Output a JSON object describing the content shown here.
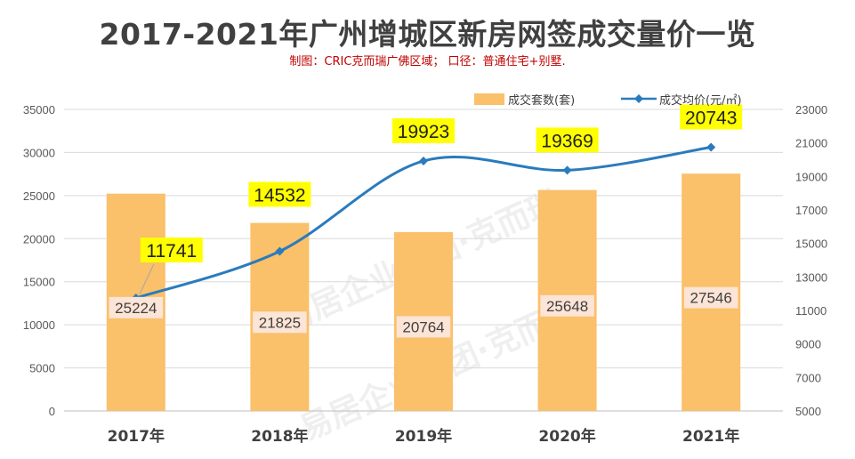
{
  "title": "2017-2021年广州增城区新房网签成交量价一览",
  "subtitle": "制图：CRIC克而瑞广佛区域； 口径：普通住宅+别墅.",
  "watermark": "易居企业集团·克而瑞",
  "chart_data": {
    "type": "bar",
    "categories": [
      "2017年",
      "2018年",
      "2019年",
      "2020年",
      "2021年"
    ],
    "series": [
      {
        "name": "成交套数(套)",
        "type": "bar",
        "axis": "left",
        "color": "#fac06a",
        "values": [
          25224,
          21825,
          20764,
          25648,
          27546
        ]
      },
      {
        "name": "成交均价(元/㎡)",
        "type": "line",
        "axis": "right",
        "color": "#2a7bbd",
        "values": [
          11741,
          14532,
          19923,
          19369,
          20743
        ]
      }
    ],
    "y_left": {
      "min": 0,
      "max": 35000,
      "ticks": [
        0,
        5000,
        10000,
        15000,
        20000,
        25000,
        30000,
        35000
      ]
    },
    "y_right": {
      "min": 5000,
      "max": 23000,
      "ticks": [
        5000,
        7000,
        9000,
        11000,
        13000,
        15000,
        17000,
        19000,
        21000,
        23000
      ]
    },
    "grid": true,
    "legend_position": "top-right",
    "label_colors": {
      "line_label_bg": "#ffff00",
      "bar_label_bg": "#fce4d6"
    }
  }
}
